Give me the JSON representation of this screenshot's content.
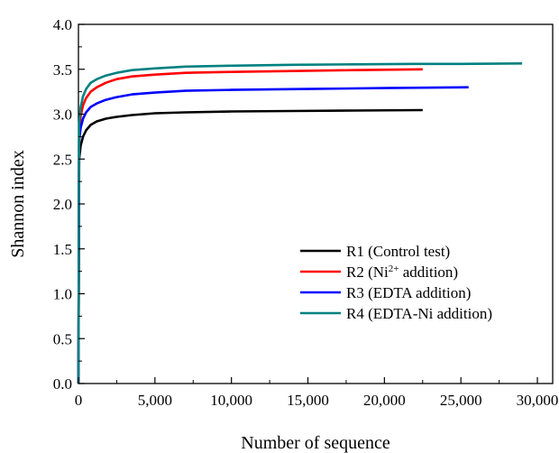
{
  "chart_data": {
    "type": "line",
    "xlabel": "Number of sequence",
    "ylabel": "Shannon index",
    "xlim": [
      0,
      31000
    ],
    "ylim": [
      0,
      4.0
    ],
    "x_ticks": [
      0,
      5000,
      10000,
      15000,
      20000,
      25000,
      30000
    ],
    "x_tick_labels": [
      "0",
      "5,000",
      "10,000",
      "15,000",
      "20,000",
      "25,000",
      "30,000"
    ],
    "y_ticks": [
      0,
      0.5,
      1.0,
      1.5,
      2.0,
      2.5,
      3.0,
      3.5,
      4.0
    ],
    "y_tick_labels": [
      "0.0",
      "0.5",
      "1.0",
      "1.5",
      "2.0",
      "2.5",
      "3.0",
      "3.5",
      "4.0"
    ],
    "grid": false,
    "legend_position": "bottom-right",
    "series": [
      {
        "name": "R1 (Control test)",
        "legend_parts": [
          {
            "text": "R1 (Control test)",
            "sup": false
          }
        ],
        "color": "#000000",
        "points": [
          [
            0,
            0
          ],
          [
            50,
            2.5
          ],
          [
            150,
            2.65
          ],
          [
            300,
            2.75
          ],
          [
            500,
            2.82
          ],
          [
            800,
            2.88
          ],
          [
            1200,
            2.92
          ],
          [
            1800,
            2.95
          ],
          [
            2500,
            2.97
          ],
          [
            3500,
            2.99
          ],
          [
            5000,
            3.01
          ],
          [
            7000,
            3.02
          ],
          [
            10000,
            3.03
          ],
          [
            14000,
            3.035
          ],
          [
            18000,
            3.04
          ],
          [
            22500,
            3.045
          ]
        ]
      },
      {
        "name": "R2 (Ni2+ addition)",
        "legend_parts": [
          {
            "text": "R2 (Ni",
            "sup": false
          },
          {
            "text": "2+",
            "sup": true
          },
          {
            "text": " addition)",
            "sup": false
          }
        ],
        "color": "#ff0000",
        "points": [
          [
            0,
            0
          ],
          [
            50,
            2.8
          ],
          [
            150,
            2.98
          ],
          [
            300,
            3.1
          ],
          [
            500,
            3.18
          ],
          [
            800,
            3.25
          ],
          [
            1200,
            3.3
          ],
          [
            1800,
            3.35
          ],
          [
            2500,
            3.39
          ],
          [
            3500,
            3.42
          ],
          [
            5000,
            3.44
          ],
          [
            7000,
            3.46
          ],
          [
            10000,
            3.47
          ],
          [
            14000,
            3.48
          ],
          [
            18000,
            3.49
          ],
          [
            22500,
            3.5
          ]
        ]
      },
      {
        "name": "R3 (EDTA addition)",
        "legend_parts": [
          {
            "text": "R3 (EDTA addition)",
            "sup": false
          }
        ],
        "color": "#0000ff",
        "points": [
          [
            0,
            0
          ],
          [
            50,
            2.7
          ],
          [
            150,
            2.85
          ],
          [
            300,
            2.95
          ],
          [
            500,
            3.02
          ],
          [
            800,
            3.08
          ],
          [
            1200,
            3.12
          ],
          [
            1800,
            3.16
          ],
          [
            2500,
            3.19
          ],
          [
            3500,
            3.22
          ],
          [
            5000,
            3.24
          ],
          [
            7000,
            3.26
          ],
          [
            10000,
            3.27
          ],
          [
            15000,
            3.28
          ],
          [
            20000,
            3.29
          ],
          [
            25500,
            3.3
          ]
        ]
      },
      {
        "name": "R4 (EDTA-Ni addition)",
        "legend_parts": [
          {
            "text": "R4 (EDTA-Ni addition)",
            "sup": false
          }
        ],
        "color": "#008080",
        "points": [
          [
            0,
            0
          ],
          [
            50,
            2.9
          ],
          [
            150,
            3.08
          ],
          [
            300,
            3.2
          ],
          [
            500,
            3.28
          ],
          [
            800,
            3.35
          ],
          [
            1200,
            3.39
          ],
          [
            1800,
            3.43
          ],
          [
            2500,
            3.46
          ],
          [
            3500,
            3.49
          ],
          [
            5000,
            3.51
          ],
          [
            7000,
            3.53
          ],
          [
            10000,
            3.54
          ],
          [
            14000,
            3.55
          ],
          [
            18000,
            3.555
          ],
          [
            22000,
            3.56
          ],
          [
            25000,
            3.56
          ],
          [
            29000,
            3.565
          ]
        ]
      }
    ]
  }
}
